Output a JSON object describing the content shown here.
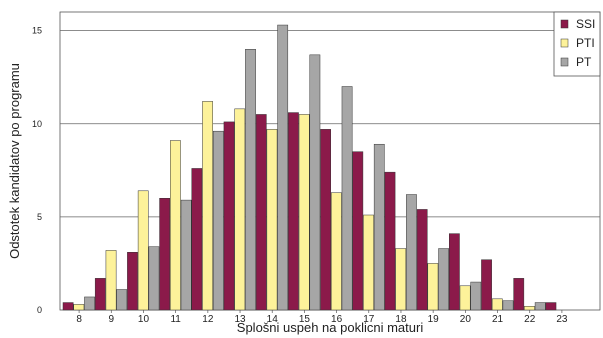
{
  "chart_data": {
    "type": "bar",
    "title": "",
    "xlabel": "Splošni uspeh na poklicni maturi",
    "ylabel": "Odstotek kandidatov po programu",
    "ylim": [
      0,
      16
    ],
    "yticks": [
      0,
      5,
      10,
      15
    ],
    "grid": "horizontal",
    "legend_position": "top-right",
    "categories": [
      "8",
      "9",
      "10",
      "11",
      "12",
      "13",
      "14",
      "15",
      "16",
      "17",
      "18",
      "19",
      "20",
      "21",
      "22",
      "23"
    ],
    "series": [
      {
        "name": "SSI",
        "color": "#8b1a4a",
        "values": [
          0.4,
          1.7,
          3.1,
          6.0,
          7.6,
          10.1,
          10.5,
          10.6,
          9.7,
          8.5,
          7.4,
          5.4,
          4.1,
          2.7,
          1.7,
          0.4
        ]
      },
      {
        "name": "PTI",
        "color": "#fdf29a",
        "values": [
          0.3,
          3.2,
          6.4,
          9.1,
          11.2,
          10.8,
          9.7,
          10.5,
          6.3,
          5.1,
          3.3,
          2.5,
          1.3,
          0.6,
          0.2,
          0.0
        ]
      },
      {
        "name": "PT",
        "color": "#a6a6a6",
        "values": [
          0.7,
          1.1,
          3.4,
          5.9,
          9.6,
          14.0,
          15.3,
          13.7,
          12.0,
          8.9,
          6.2,
          3.3,
          1.5,
          0.5,
          0.4,
          0.0
        ]
      }
    ]
  }
}
